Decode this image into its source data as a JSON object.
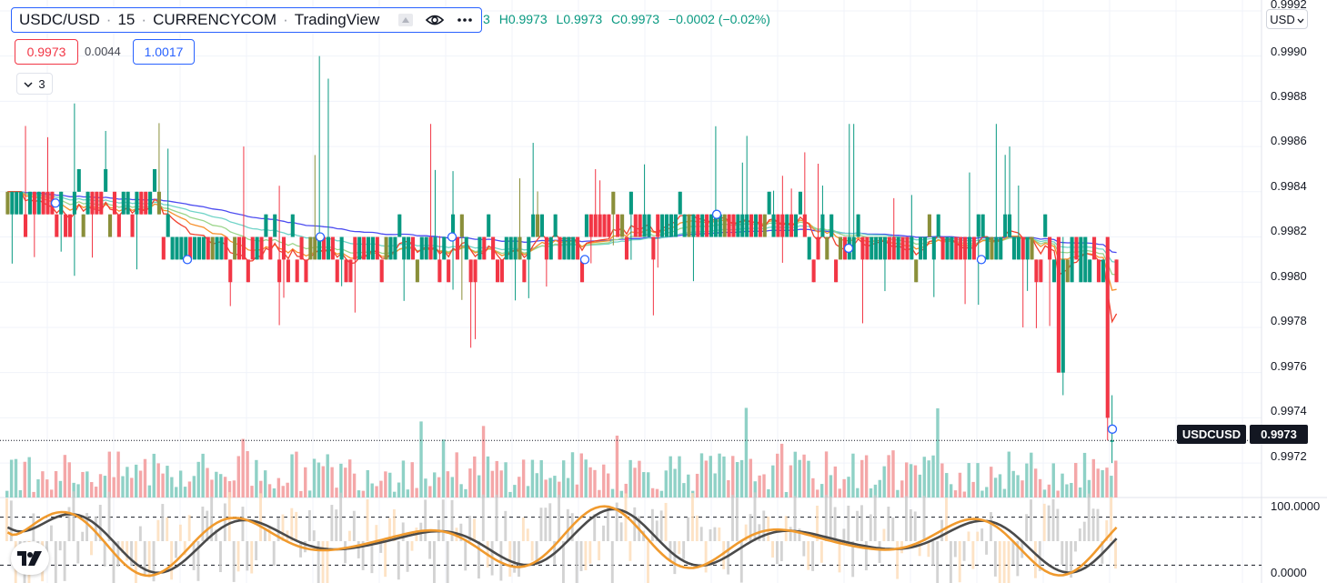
{
  "legend": {
    "symbol": "USDC/USD",
    "interval": "15",
    "exchange": "CURRENCYCOM",
    "source": "TradingView",
    "separator": "·"
  },
  "ohlc": {
    "o_tail": "3",
    "h_label": "H",
    "h_value": "0.9973",
    "l_label": "L",
    "l_value": "0.9973",
    "c_label": "C",
    "c_value": "0.9973",
    "change": "−0.0002 (−0.02%)"
  },
  "trade": {
    "sell": "0.9973",
    "spread": "0.0044",
    "buy": "1.0017"
  },
  "indicators_toggle": {
    "count": "3"
  },
  "price_axis": {
    "currency": "USD",
    "labels": [
      "0.9992",
      "0.9990",
      "0.9988",
      "0.9986",
      "0.9984",
      "0.9982",
      "0.9980",
      "0.9978",
      "0.9976",
      "0.9974",
      "0.9972"
    ],
    "symbol_tag": "USDCUSD",
    "last_price": "0.9973"
  },
  "oscillator_axis": {
    "labels": [
      "100.0000",
      "0.0000"
    ]
  },
  "colors": {
    "up": "#089981",
    "down": "#f23645",
    "olive": "#8a8f3a",
    "ma_blue": "#4c4cf0",
    "ma_cyan": "#71d4c8",
    "ma_green": "#9bd58a",
    "ma_orange": "#f7902c",
    "ma_red": "#f0412f",
    "vol_up": "#8fd1c6",
    "vol_down": "#f4a7a8",
    "stoch_k": "#f09a2e",
    "stoch_d": "#4a4a4a"
  },
  "chart_data": {
    "type": "candlestick",
    "symbol": "USDC/USD",
    "interval": "15",
    "y_range": [
      0.99712,
      0.99924
    ],
    "price_ticks": [
      0.9992,
      0.999,
      0.9988,
      0.9986,
      0.9984,
      0.9982,
      0.998,
      0.9978,
      0.9976,
      0.9974,
      0.9972
    ],
    "last_close": 0.9973,
    "notable_highs": [
      0.999,
      0.9989,
      0.9987,
      0.9987
    ],
    "notable_lows": [
      0.9975,
      0.9972,
      0.9978,
      0.9979
    ],
    "lower_pane": {
      "type": "stochastic_rsi",
      "y_range": [
        0,
        100
      ],
      "levels": [
        80,
        20
      ]
    }
  }
}
